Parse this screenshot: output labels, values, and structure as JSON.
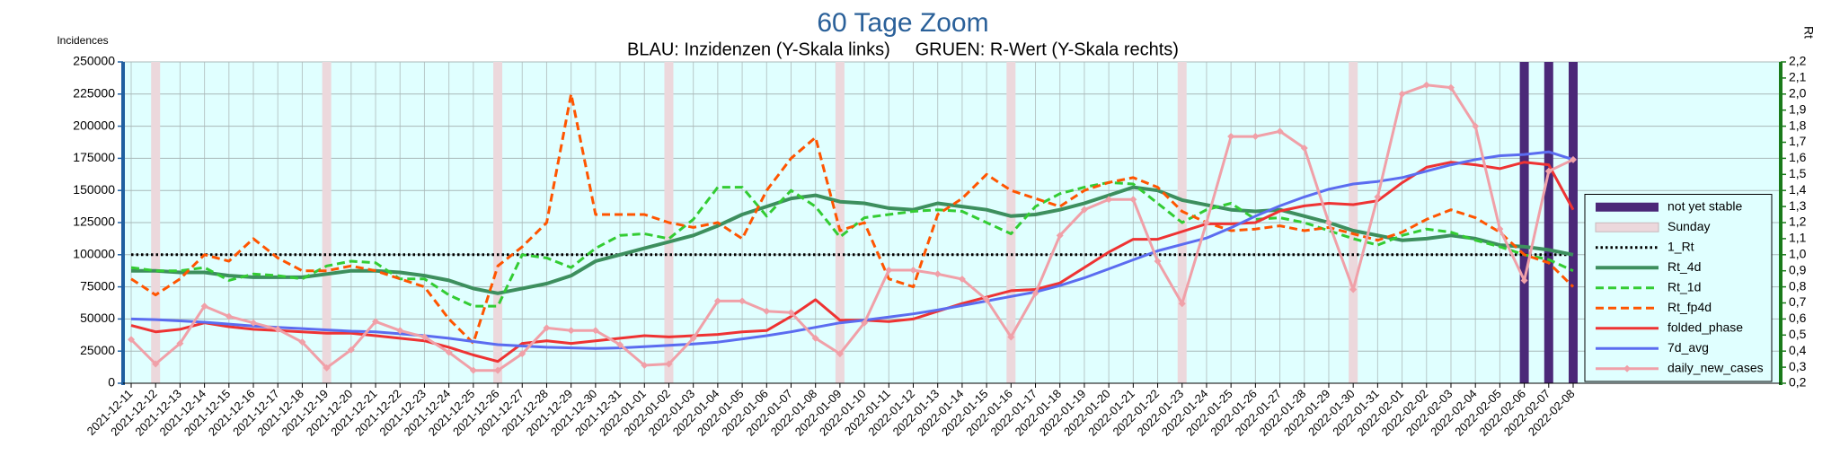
{
  "chart_data": {
    "type": "line",
    "title": "60 Tage Zoom",
    "subtitle": "BLAU: Inzidenzen (Y-Skala links)     GRUEN: R-Wert (Y-Skala rechts)",
    "y_label": "Incidences",
    "y2_label": "Rt",
    "categories": [
      "2021-12-11",
      "2021-12-12",
      "2021-12-13",
      "2021-12-14",
      "2021-12-15",
      "2021-12-16",
      "2021-12-17",
      "2021-12-18",
      "2021-12-19",
      "2021-12-20",
      "2021-12-21",
      "2021-12-22",
      "2021-12-23",
      "2021-12-24",
      "2021-12-25",
      "2021-12-26",
      "2021-12-27",
      "2021-12-28",
      "2021-12-29",
      "2021-12-30",
      "2021-12-31",
      "2022-01-01",
      "2022-01-02",
      "2022-01-03",
      "2022-01-04",
      "2022-01-05",
      "2022-01-06",
      "2022-01-07",
      "2022-01-08",
      "2022-01-09",
      "2022-01-10",
      "2022-01-11",
      "2022-01-12",
      "2022-01-13",
      "2022-01-14",
      "2022-01-15",
      "2022-01-16",
      "2022-01-17",
      "2022-01-18",
      "2022-01-19",
      "2022-01-20",
      "2022-01-21",
      "2022-01-22",
      "2022-01-23",
      "2022-01-24",
      "2022-01-25",
      "2022-01-26",
      "2022-01-27",
      "2022-01-28",
      "2022-01-29",
      "2022-01-30",
      "2022-01-31",
      "2022-02-01",
      "2022-02-02",
      "2022-02-03",
      "2022-02-04",
      "2022-02-05",
      "2022-02-06",
      "2022-02-07",
      "2022-02-08"
    ],
    "ylim": [
      0,
      250000
    ],
    "yticks": [
      0,
      25000,
      50000,
      75000,
      100000,
      125000,
      150000,
      175000,
      200000,
      225000,
      250000
    ],
    "y2lim": [
      0.2,
      2.2
    ],
    "y2ticks": [
      {
        "value": 0.2,
        "label": "0,2"
      },
      {
        "value": 0.3,
        "label": "0,3"
      },
      {
        "value": 0.4,
        "label": "0,4"
      },
      {
        "value": 0.5,
        "label": "0,5"
      },
      {
        "value": 0.6,
        "label": "0,6"
      },
      {
        "value": 0.7,
        "label": "0,7"
      },
      {
        "value": 0.8,
        "label": "0,8"
      },
      {
        "value": 0.9,
        "label": "0,9"
      },
      {
        "value": 1.0,
        "label": "1,0"
      },
      {
        "value": 1.1,
        "label": "1,1"
      },
      {
        "value": 1.2,
        "label": "1,2"
      },
      {
        "value": 1.3,
        "label": "1,3"
      },
      {
        "value": 1.4,
        "label": "1,4"
      },
      {
        "value": 1.5,
        "label": "1,5"
      },
      {
        "value": 1.6,
        "label": "1,6"
      },
      {
        "value": 1.7,
        "label": "1,7"
      },
      {
        "value": 1.8,
        "label": "1,8"
      },
      {
        "value": 1.9,
        "label": "1,9"
      },
      {
        "value": 2.0,
        "label": "2,0"
      },
      {
        "value": 2.1,
        "label": "2,1"
      },
      {
        "value": 2.2,
        "label": "2,2"
      }
    ],
    "grid": true,
    "legend": "lower right",
    "series": [
      {
        "name": "not yet stable",
        "type": "bar",
        "color": "#4b2878",
        "values": [
          null,
          null,
          null,
          null,
          null,
          null,
          null,
          null,
          null,
          null,
          null,
          null,
          null,
          null,
          null,
          null,
          null,
          null,
          null,
          null,
          null,
          null,
          null,
          null,
          null,
          null,
          null,
          null,
          null,
          null,
          null,
          null,
          null,
          null,
          null,
          null,
          null,
          null,
          null,
          null,
          null,
          null,
          null,
          null,
          null,
          null,
          null,
          null,
          null,
          null,
          null,
          null,
          null,
          null,
          null,
          null,
          null,
          250000,
          250000,
          250000
        ]
      },
      {
        "name": "Sunday",
        "type": "bar",
        "color": "#ecd8dc",
        "values": [
          null,
          250000,
          null,
          null,
          null,
          null,
          null,
          null,
          250000,
          null,
          null,
          null,
          null,
          null,
          null,
          250000,
          null,
          null,
          null,
          null,
          null,
          null,
          250000,
          null,
          null,
          null,
          null,
          null,
          null,
          250000,
          null,
          null,
          null,
          null,
          null,
          null,
          250000,
          null,
          null,
          null,
          null,
          null,
          null,
          250000,
          null,
          null,
          null,
          null,
          null,
          null,
          250000,
          null,
          null,
          null,
          null,
          null,
          null,
          null,
          null,
          null
        ]
      },
      {
        "name": "1_Rt",
        "type": "line",
        "style": "dotted",
        "axis": "y2",
        "color": "#000000",
        "values": [
          1,
          1,
          1,
          1,
          1,
          1,
          1,
          1,
          1,
          1,
          1,
          1,
          1,
          1,
          1,
          1,
          1,
          1,
          1,
          1,
          1,
          1,
          1,
          1,
          1,
          1,
          1,
          1,
          1,
          1,
          1,
          1,
          1,
          1,
          1,
          1,
          1,
          1,
          1,
          1,
          1,
          1,
          1,
          1,
          1,
          1,
          1,
          1,
          1,
          1,
          1,
          1,
          1,
          1,
          1,
          1,
          1,
          1,
          1,
          1
        ]
      },
      {
        "name": "Rt_4d",
        "type": "line",
        "style": "solid",
        "axis": "y2",
        "color": "#3d8f5e",
        "values": [
          0.9,
          0.9,
          0.89,
          0.89,
          0.87,
          0.86,
          0.86,
          0.86,
          0.88,
          0.9,
          0.9,
          0.89,
          0.87,
          0.84,
          0.79,
          0.76,
          0.79,
          0.82,
          0.87,
          0.96,
          1.0,
          1.04,
          1.08,
          1.12,
          1.18,
          1.25,
          1.3,
          1.35,
          1.37,
          1.33,
          1.32,
          1.29,
          1.28,
          1.32,
          1.3,
          1.28,
          1.24,
          1.25,
          1.28,
          1.32,
          1.37,
          1.42,
          1.4,
          1.34,
          1.31,
          1.28,
          1.27,
          1.28,
          1.24,
          1.2,
          1.15,
          1.12,
          1.09,
          1.1,
          1.12,
          1.1,
          1.06,
          1.05,
          1.03,
          1.0
        ]
      },
      {
        "name": "Rt_1d",
        "type": "line",
        "style": "dashed",
        "axis": "y2",
        "color": "#33cc33",
        "values": [
          0.92,
          0.9,
          0.9,
          0.92,
          0.84,
          0.88,
          0.87,
          0.85,
          0.93,
          0.96,
          0.95,
          0.85,
          0.85,
          0.75,
          0.68,
          0.68,
          1.0,
          0.98,
          0.92,
          1.04,
          1.12,
          1.13,
          1.1,
          1.22,
          1.42,
          1.42,
          1.24,
          1.4,
          1.3,
          1.11,
          1.23,
          1.25,
          1.27,
          1.28,
          1.27,
          1.2,
          1.13,
          1.3,
          1.38,
          1.42,
          1.45,
          1.44,
          1.32,
          1.2,
          1.28,
          1.32,
          1.22,
          1.23,
          1.2,
          1.15,
          1.1,
          1.06,
          1.12,
          1.16,
          1.14,
          1.09,
          1.05,
          1.0,
          0.97,
          0.9
        ]
      },
      {
        "name": "Rt_fp4d",
        "type": "line",
        "style": "dashed",
        "axis": "y2",
        "color": "#ff5500",
        "values": [
          0.85,
          0.75,
          0.85,
          1.0,
          0.96,
          1.1,
          0.98,
          0.9,
          0.9,
          0.93,
          0.9,
          0.85,
          0.8,
          0.6,
          0.45,
          0.93,
          1.05,
          1.2,
          2.0,
          1.25,
          1.25,
          1.25,
          1.2,
          1.17,
          1.2,
          1.1,
          1.4,
          1.6,
          1.73,
          1.15,
          1.2,
          0.85,
          0.8,
          1.25,
          1.35,
          1.5,
          1.4,
          1.35,
          1.3,
          1.4,
          1.45,
          1.48,
          1.42,
          1.27,
          1.2,
          1.15,
          1.16,
          1.18,
          1.15,
          1.17,
          1.13,
          1.09,
          1.14,
          1.22,
          1.28,
          1.23,
          1.14,
          1.0,
          0.95,
          0.8
        ]
      },
      {
        "name": "folded_phase",
        "type": "line",
        "style": "solid",
        "color": "#ee3333",
        "values": [
          45000,
          40000,
          42000,
          47000,
          44000,
          42000,
          41000,
          40000,
          39000,
          39000,
          37000,
          35000,
          33000,
          28000,
          22000,
          17000,
          31000,
          33000,
          31000,
          33000,
          35000,
          37000,
          36000,
          37000,
          38000,
          40000,
          41000,
          52000,
          65000,
          49000,
          49000,
          48000,
          50000,
          56000,
          62000,
          67000,
          72000,
          73000,
          78000,
          90000,
          102000,
          112000,
          112000,
          118000,
          124000,
          124000,
          125000,
          134000,
          138000,
          140000,
          139000,
          142000,
          156000,
          168000,
          172000,
          170000,
          167000,
          172000,
          170000,
          135000
        ]
      },
      {
        "name": "7d_avg",
        "type": "line",
        "style": "solid",
        "color": "#5b6cf0",
        "values": [
          50000,
          49500,
          48500,
          47500,
          46000,
          44500,
          43500,
          42500,
          41500,
          40500,
          40000,
          38500,
          37000,
          35000,
          32500,
          30000,
          29000,
          28000,
          27500,
          27000,
          27500,
          28500,
          29500,
          30500,
          32000,
          34500,
          37000,
          40000,
          43500,
          47000,
          49000,
          51500,
          54000,
          57000,
          60500,
          64000,
          67500,
          71000,
          76000,
          82000,
          89000,
          96000,
          103000,
          108000,
          113000,
          121000,
          130000,
          138000,
          145000,
          151000,
          155000,
          157000,
          160000,
          165000,
          170000,
          174000,
          177000,
          178000,
          180000,
          174000
        ]
      },
      {
        "name": "daily_new_cases",
        "type": "line",
        "style": "solid",
        "marker": true,
        "color": "#f0a0a8",
        "values": [
          34000,
          15000,
          31000,
          60000,
          52000,
          47000,
          42000,
          32000,
          12000,
          26000,
          48000,
          41000,
          36000,
          24000,
          10000,
          10000,
          23000,
          43000,
          41000,
          41000,
          30000,
          14000,
          15000,
          35000,
          64000,
          64000,
          56000,
          55000,
          35000,
          23000,
          47000,
          88000,
          88000,
          85000,
          81000,
          65000,
          36000,
          70000,
          115000,
          135000,
          143000,
          143000,
          95000,
          62000,
          125000,
          192000,
          192000,
          196000,
          183000,
          125000,
          73000,
          145000,
          225000,
          232000,
          230000,
          200000,
          120000,
          80000,
          165000,
          174000
        ]
      }
    ]
  }
}
